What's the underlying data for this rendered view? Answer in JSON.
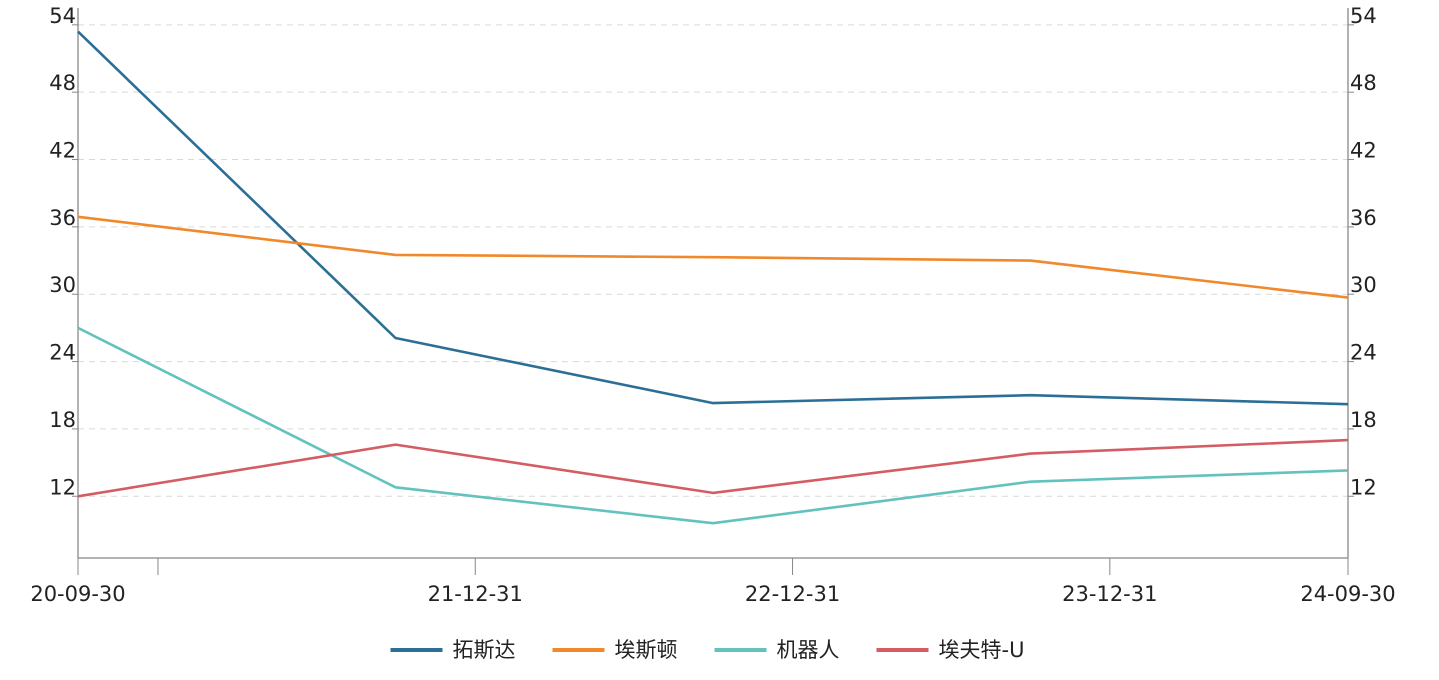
{
  "chart_data": {
    "type": "line",
    "title": "",
    "xlabel": "",
    "ylabel": "",
    "x": [
      "20-09-30",
      "21-09-30",
      "22-09-30",
      "23-09-30",
      "24-09-30"
    ],
    "x_tick_labels": [
      "20-09-30",
      "21-12-31",
      "22-12-31",
      "23-12-31",
      "24-09-30"
    ],
    "x_tick_dates": [
      "2020-09-30",
      "2021-12-31",
      "2022-12-31",
      "2023-12-31",
      "2024-09-30"
    ],
    "x_minor_tick_dates": [
      "2020-12-31"
    ],
    "ylim": [
      6.5,
      55.5
    ],
    "y_ticks": [
      12,
      18,
      24,
      30,
      36,
      42,
      48,
      54
    ],
    "y_axis_right_mirror": true,
    "grid": "horizontal-dashed",
    "legend_position": "bottom-center",
    "series": [
      {
        "name": "拓斯达",
        "color": "#2c6f96",
        "values": [
          53.4,
          26.1,
          20.3,
          21.0,
          20.2
        ]
      },
      {
        "name": "埃斯顿",
        "color": "#f0892b",
        "values": [
          36.9,
          33.5,
          33.3,
          33.0,
          29.7
        ]
      },
      {
        "name": "机器人",
        "color": "#63c2be",
        "values": [
          27.0,
          12.8,
          9.6,
          13.3,
          14.3
        ]
      },
      {
        "name": "埃夫特-U",
        "color": "#d35d63",
        "values": [
          12.0,
          16.6,
          12.3,
          15.8,
          17.0
        ]
      }
    ]
  }
}
